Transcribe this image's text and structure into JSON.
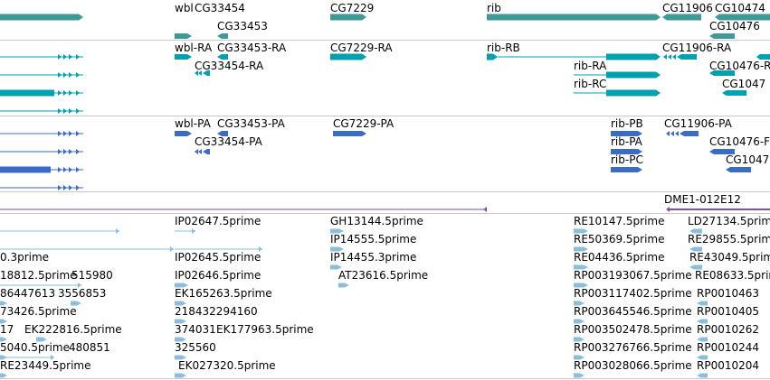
{
  "colors": {
    "gene": "#3f9a97",
    "mrna": "#00a0b0",
    "protein": "#3a6bc8",
    "clone": "#7b52a8",
    "est": "#8cbddc",
    "separator": "#c8c8c8"
  },
  "tracks": [
    {
      "id": "genes",
      "labels": [
        {
          "text": "wbl"
        },
        {
          "text": "CG33454"
        },
        {
          "text": "CG33453"
        },
        {
          "text": "CG7229"
        },
        {
          "text": "rib"
        },
        {
          "text": "CG11906"
        },
        {
          "text": "CG10474"
        },
        {
          "text": "CG10476"
        }
      ]
    },
    {
      "id": "transcripts",
      "labels": [
        {
          "text": "wbl-RA"
        },
        {
          "text": "CG33453-RA"
        },
        {
          "text": "CG33454-RA"
        },
        {
          "text": "CG7229-RA"
        },
        {
          "text": "rib-RB"
        },
        {
          "text": "rib-RA"
        },
        {
          "text": "rib-RC"
        },
        {
          "text": "CG11906-RA"
        },
        {
          "text": "CG10476-R"
        },
        {
          "text": "CG1047"
        }
      ]
    },
    {
      "id": "proteins",
      "labels": [
        {
          "text": "wbl-PA"
        },
        {
          "text": "CG33453-PA"
        },
        {
          "text": "CG33454-PA"
        },
        {
          "text": "CG7229-PA"
        },
        {
          "text": "rib-PB"
        },
        {
          "text": "rib-PA"
        },
        {
          "text": "rib-PC"
        },
        {
          "text": "CG11906-PA"
        },
        {
          "text": "CG10476-F"
        },
        {
          "text": "CG1047"
        }
      ]
    },
    {
      "id": "clones",
      "labels": [
        {
          "text": "DME1-012E12"
        }
      ]
    },
    {
      "id": "ests",
      "labels": [
        {
          "text": "IP02647.5prime"
        },
        {
          "text": "GH13144.5prime"
        },
        {
          "text": "RE10147.5prime"
        },
        {
          "text": "LD27134.5prim"
        },
        {
          "text": "IP14555.5prime"
        },
        {
          "text": "RE50369.5prime"
        },
        {
          "text": "RE29855.5prim"
        },
        {
          "text": "0.3prime"
        },
        {
          "text": "IP02645.5prime"
        },
        {
          "text": "IP14455.3prime"
        },
        {
          "text": "RE04436.5prime"
        },
        {
          "text": "RE43049.5prim"
        },
        {
          "text": "18812.5prime"
        },
        {
          "text": "515980"
        },
        {
          "text": "IP02646.5prime"
        },
        {
          "text": "AT23616.5prime"
        },
        {
          "text": "RP003193067.5prime"
        },
        {
          "text": "RE08633.5prim"
        },
        {
          "text": "86447613"
        },
        {
          "text": "3556853"
        },
        {
          "text": "EK165263.5prime"
        },
        {
          "text": "RP003117402.5prime"
        },
        {
          "text": "RP0010463"
        },
        {
          "text": "73426.5prime"
        },
        {
          "text": "218432294160"
        },
        {
          "text": "RP003645546.5prime"
        },
        {
          "text": "RP0010405"
        },
        {
          "text": "17"
        },
        {
          "text": "EK222816.5prime"
        },
        {
          "text": "374031"
        },
        {
          "text": "EK177963.5prime"
        },
        {
          "text": "RP003502478.5prime"
        },
        {
          "text": "RP0010262"
        },
        {
          "text": "5040.5prime"
        },
        {
          "text": "480851"
        },
        {
          "text": "325560"
        },
        {
          "text": "RP003276766.5prime"
        },
        {
          "text": "RP0010244"
        },
        {
          "text": "RE23449.5prime"
        },
        {
          "text": "EK027320.5prime"
        },
        {
          "text": "RP003028066.5prime"
        },
        {
          "text": "RP0010204"
        }
      ]
    }
  ]
}
